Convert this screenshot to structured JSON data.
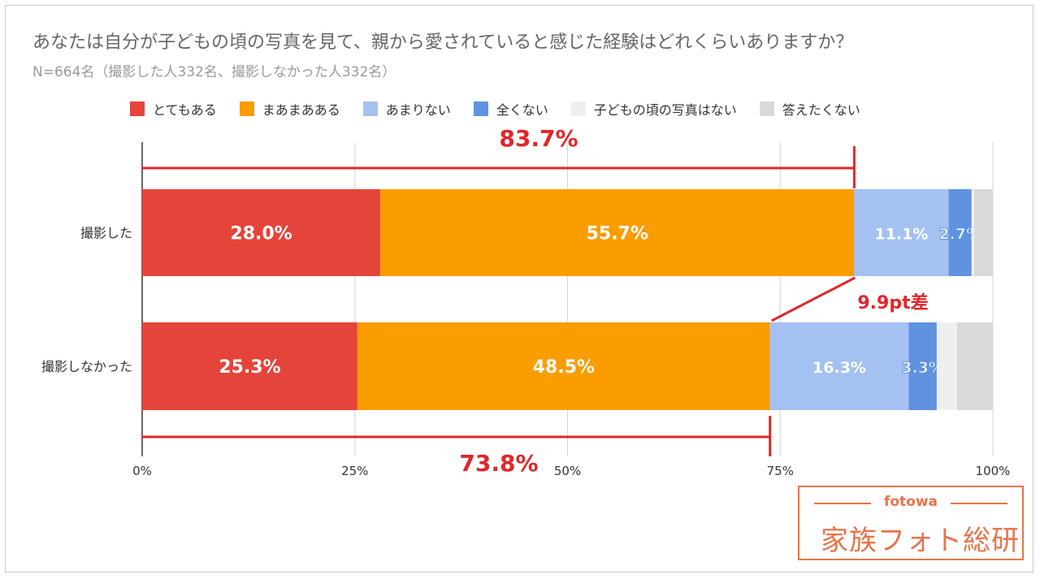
{
  "title": "あなたは自分が子どもの頃の写真を見て、親から愛されていると感じた経験はどれくらいありますか？",
  "subtitle": "N=664名（撮影した人332名、撮影しなかった人332名）",
  "chart_data": {
    "type": "bar",
    "orientation": "horizontal",
    "stacked": true,
    "categories": [
      "撮影した",
      "撮影しなかった"
    ],
    "series": [
      {
        "name": "とてもある",
        "values": [
          28.0,
          25.3
        ],
        "color": "#e5443a",
        "labels": [
          "28.0%",
          "25.3%"
        ]
      },
      {
        "name": "まあまあある",
        "values": [
          55.7,
          48.5
        ],
        "color": "#fb9c00",
        "labels": [
          "55.7%",
          "48.5%"
        ]
      },
      {
        "name": "あまりない",
        "values": [
          11.1,
          16.3
        ],
        "color": "#a5c1f2",
        "labels": [
          "11.1%",
          "16.3%"
        ]
      },
      {
        "name": "全くない",
        "values": [
          2.7,
          3.3
        ],
        "color": "#5f93e0",
        "labels": [
          "2.7%",
          "3.3%"
        ]
      },
      {
        "name": "子どもの頃の写真はない",
        "values": [
          0.3,
          2.4
        ],
        "color": "#efefef",
        "labels": [
          "",
          ""
        ]
      },
      {
        "name": "答えたくない",
        "values": [
          2.2,
          4.2
        ],
        "color": "#d9d9d9",
        "labels": [
          "",
          ""
        ]
      }
    ],
    "xlim": [
      0,
      100
    ],
    "xticks": [
      "0%",
      "25%",
      "50%",
      "75%",
      "100%"
    ],
    "grid": true,
    "legend_position": "top",
    "annotations": [
      {
        "text": "83.7%",
        "value": 83.7,
        "category": "撮影した",
        "position": "above"
      },
      {
        "text": "73.8%",
        "value": 73.8,
        "category": "撮影しなかった",
        "position": "below"
      },
      {
        "text": "9.9pt差",
        "position": "between"
      }
    ]
  },
  "logo": {
    "brand": "fotowa",
    "text": "家族フォト総研"
  }
}
